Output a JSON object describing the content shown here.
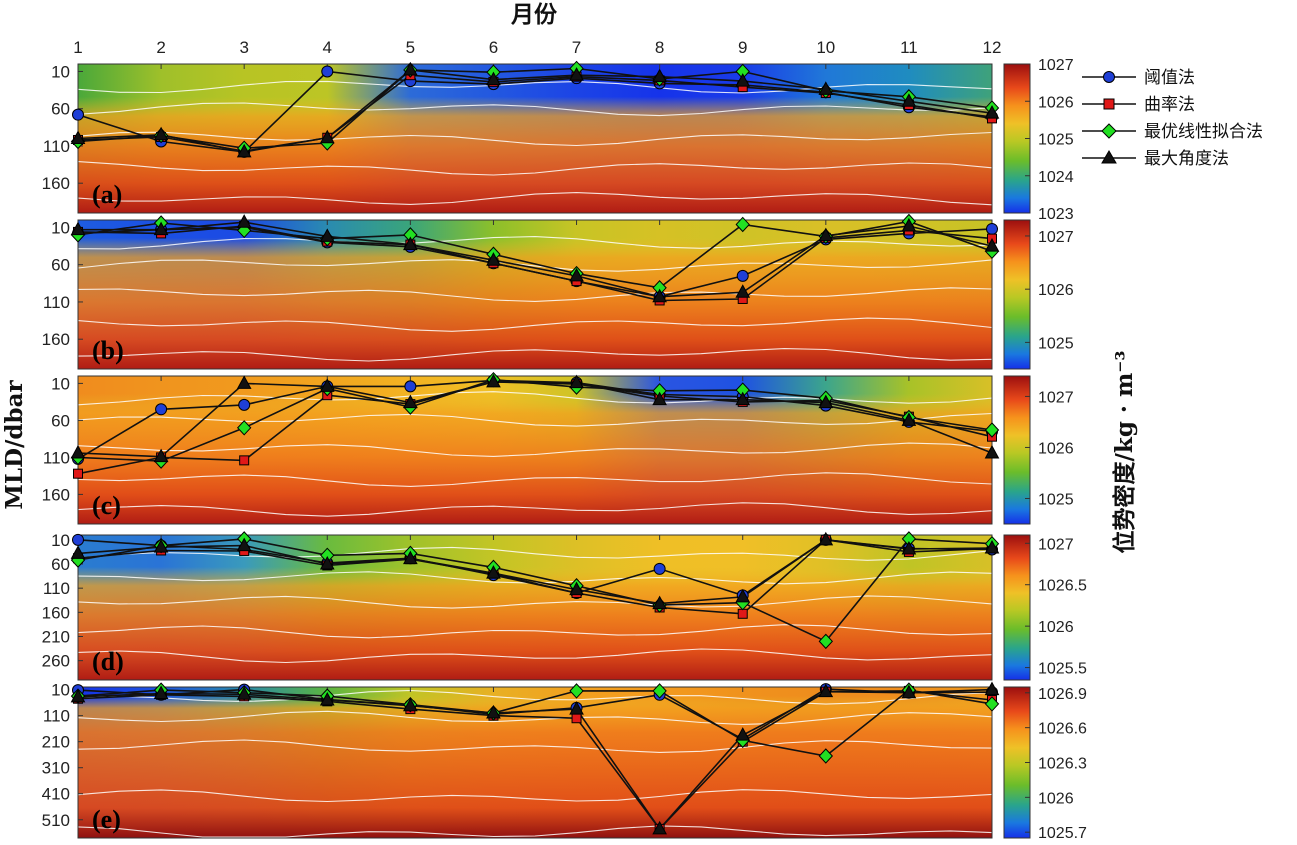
{
  "chart_data": {
    "type": "line",
    "top_axis_title": "月份",
    "ylabel": "MLD/dbar",
    "colorbar_label": "位势密度/kg · m⁻³",
    "x": [
      "1",
      "2",
      "3",
      "4",
      "5",
      "6",
      "7",
      "8",
      "9",
      "10",
      "11",
      "12"
    ],
    "legend": {
      "placement": "top-right",
      "entries": [
        {
          "name": "阈值法",
          "marker": "circle",
          "color": "#1f3fd6"
        },
        {
          "name": "曲率法",
          "marker": "square",
          "color": "#e01818"
        },
        {
          "name": "最优线性拟合法",
          "marker": "diamond",
          "color": "#22e022"
        },
        {
          "name": "最大角度法",
          "marker": "triangle",
          "color": "#111111"
        }
      ]
    },
    "panels": [
      {
        "label": "(a)",
        "ylim": [
          0,
          200
        ],
        "yticks": [
          10,
          60,
          110,
          160
        ],
        "colorbar": {
          "range": [
            1023,
            1027
          ],
          "ticks": [
            1027,
            1026,
            1025,
            1024,
            1023
          ]
        },
        "series": [
          {
            "name": "阈值法",
            "values": [
              68,
              104,
              118,
              10,
              23,
              27,
              19,
              26,
              28,
              38,
              58,
              71
            ]
          },
          {
            "name": "曲率法",
            "values": [
              102,
              98,
              117,
              99,
              15,
              24,
              17,
              22,
              31,
              39,
              55,
              73
            ]
          },
          {
            "name": "最优线性拟合法",
            "values": [
              104,
              96,
              113,
              106,
              8,
              11,
              6,
              20,
              10,
              36,
              44,
              59
            ]
          },
          {
            "name": "最大角度法",
            "values": [
              100,
              95,
              118,
              99,
              8,
              21,
              15,
              17,
              23,
              34,
              50,
              66
            ]
          }
        ]
      },
      {
        "label": "(b)",
        "ylim": [
          0,
          200
        ],
        "yticks": [
          10,
          60,
          110,
          160
        ],
        "colorbar": {
          "range": [
            1024.5,
            1027.3
          ],
          "ticks": [
            1027,
            1026,
            1025
          ]
        },
        "series": [
          {
            "name": "阈值法",
            "values": [
              18,
              13,
              10,
              30,
              36,
              58,
              82,
              103,
              75,
              26,
              18,
              12
            ]
          },
          {
            "name": "曲率法",
            "values": [
              16,
              18,
              8,
              29,
              33,
              58,
              82,
              108,
              106,
              24,
              14,
              25
            ]
          },
          {
            "name": "最优线性拟合法",
            "values": [
              20,
              4,
              14,
              25,
              20,
              46,
              72,
              91,
              6,
              22,
              2,
              42
            ]
          },
          {
            "name": "最大角度法",
            "values": [
              13,
              13,
              3,
              22,
              33,
              54,
              75,
              103,
              97,
              21,
              8,
              35
            ]
          }
        ]
      },
      {
        "label": "(c)",
        "ylim": [
          0,
          200
        ],
        "yticks": [
          10,
          60,
          110,
          160
        ],
        "colorbar": {
          "range": [
            1024.5,
            1027.4
          ],
          "ticks": [
            1027,
            1026,
            1025
          ]
        },
        "series": [
          {
            "name": "阈值法",
            "values": [
              112,
              45,
              39,
              14,
              14,
              6,
              9,
              25,
              28,
              40,
              62,
              75
            ]
          },
          {
            "name": "曲率法",
            "values": [
              132,
              110,
              114,
              26,
              38,
              8,
              11,
              27,
              35,
              33,
              55,
              82
            ]
          },
          {
            "name": "最优线性拟合法",
            "values": [
              110,
              115,
              70,
              17,
              42,
              5,
              15,
              20,
              19,
              30,
              56,
              73
            ]
          },
          {
            "name": "最大角度法",
            "values": [
              104,
              109,
              10,
              14,
              36,
              8,
              9,
              32,
              32,
              36,
              60,
              104
            ]
          }
        ]
      },
      {
        "label": "(d)",
        "ylim": [
          0,
          300
        ],
        "yticks": [
          10,
          60,
          110,
          160,
          210,
          260
        ],
        "colorbar": {
          "range": [
            1025.35,
            1027.1
          ],
          "ticks": [
            1027,
            1026.5,
            1026,
            1025.5
          ]
        },
        "series": [
          {
            "name": "阈值法",
            "values": [
              10,
              22,
              30,
              58,
              48,
              83,
              120,
              70,
              125,
              10,
              28,
              30
            ]
          },
          {
            "name": "曲率法",
            "values": [
              48,
              32,
              33,
              63,
              50,
              80,
              120,
              150,
              163,
              10,
              35,
              28
            ]
          },
          {
            "name": "最优线性拟合法",
            "values": [
              52,
              22,
              8,
              42,
              38,
              67,
              105,
              145,
              140,
              220,
              8,
              18
            ]
          },
          {
            "name": "最大角度法",
            "values": [
              38,
              25,
              22,
              60,
              49,
              79,
              113,
              142,
              128,
              10,
              29,
              27
            ]
          }
        ]
      },
      {
        "label": "(e)",
        "ylim": [
          0,
          580
        ],
        "yticks": [
          10,
          110,
          210,
          310,
          410,
          510
        ],
        "colorbar": {
          "range": [
            1025.65,
            1026.95
          ],
          "ticks": [
            1026.9,
            1026.6,
            1026.3,
            1026,
            1025.7
          ]
        },
        "series": [
          {
            "name": "阈值法",
            "values": [
              12,
              30,
              10,
              48,
              70,
              105,
              80,
              30,
              200,
              8,
              22,
              20
            ]
          },
          {
            "name": "曲率法",
            "values": [
              45,
              30,
              36,
              55,
              85,
              110,
              120,
              545,
              210,
              18,
              15,
              50
            ]
          },
          {
            "name": "最优线性拟合法",
            "values": [
              35,
              12,
              22,
              35,
              68,
              100,
              15,
              15,
              205,
              265,
              12,
              65
            ]
          },
          {
            "name": "最大角度法",
            "values": [
              38,
              25,
              28,
              50,
              72,
              100,
              85,
              545,
              185,
              18,
              22,
              10
            ]
          }
        ]
      }
    ]
  }
}
